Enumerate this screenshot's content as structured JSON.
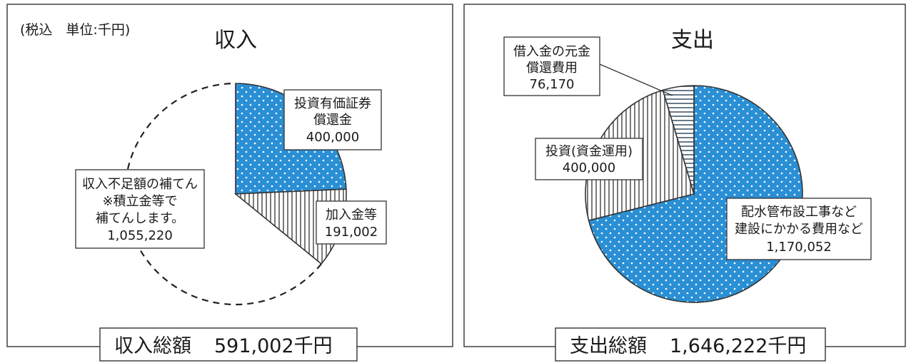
{
  "unit_note": "(税込　単位:千円)",
  "colors": {
    "accent": "#2a8fd4",
    "stripe": "#7a7a7a",
    "border": "#333333"
  },
  "chart_data": [
    {
      "type": "pie",
      "title": "収入",
      "total_label": "収入総額",
      "total_value": "591,002千円",
      "slices": [
        {
          "lines": [
            "投資有価証券",
            "償還金",
            "400,000"
          ],
          "value": 400000,
          "pattern": "dots",
          "color": "#2a8fd4"
        },
        {
          "lines": [
            "加入金等",
            "191,002"
          ],
          "value": 191002,
          "pattern": "vertical-stripes",
          "color": "#7a7a7a"
        },
        {
          "lines": [
            "収入不足額の補てん",
            "※積立金等で",
            "補てんします。",
            "1,055,220"
          ],
          "value": 1055220,
          "pattern": "none-dashed-outline",
          "color": "#333333"
        }
      ]
    },
    {
      "type": "pie",
      "title": "支出",
      "total_label": "支出総額",
      "total_value": "1,646,222千円",
      "slices": [
        {
          "lines": [
            "配水管布設工事など",
            "建設にかかる費用など",
            "1,170,052"
          ],
          "value": 1170052,
          "pattern": "dots",
          "color": "#2a8fd4"
        },
        {
          "lines": [
            "投資(資金運用)",
            "400,000"
          ],
          "value": 400000,
          "pattern": "vertical-stripes",
          "color": "#7a7a7a"
        },
        {
          "lines": [
            "借入金の元金",
            "償還費用",
            "76,170"
          ],
          "value": 76170,
          "pattern": "horizontal-stripes",
          "color": "#7a7a7a"
        }
      ]
    }
  ]
}
